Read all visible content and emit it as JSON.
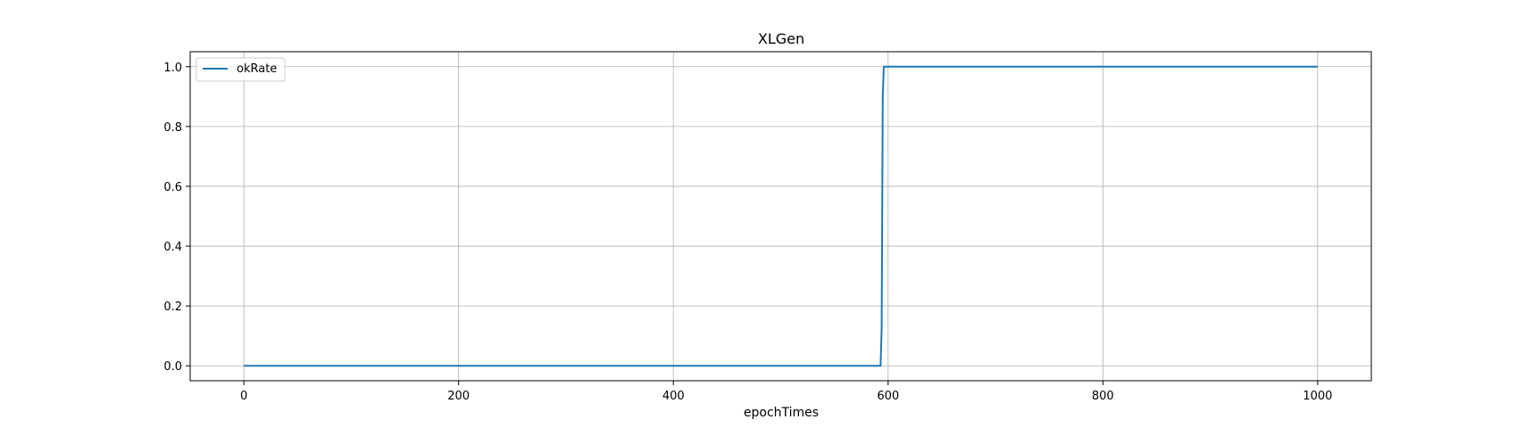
{
  "chart_data": {
    "type": "line",
    "title": "XLGen",
    "xlabel": "epochTimes",
    "ylabel": "",
    "xlim": [
      -50,
      1050
    ],
    "ylim": [
      -0.05,
      1.05
    ],
    "xticks": [
      0,
      200,
      400,
      600,
      800,
      1000
    ],
    "xtick_labels": [
      "0",
      "200",
      "400",
      "600",
      "800",
      "1000"
    ],
    "yticks": [
      0.0,
      0.2,
      0.4,
      0.6,
      0.8,
      1.0
    ],
    "ytick_labels": [
      "0.0",
      "0.2",
      "0.4",
      "0.6",
      "0.8",
      "1.0"
    ],
    "grid": true,
    "legend_position": "upper-left",
    "series": [
      {
        "name": "okRate",
        "color": "#1f77b4",
        "x": [
          0,
          593,
          594,
          595,
          596,
          1000
        ],
        "y": [
          0.0,
          0.0,
          0.13,
          0.9,
          1.0,
          1.0
        ]
      }
    ]
  }
}
